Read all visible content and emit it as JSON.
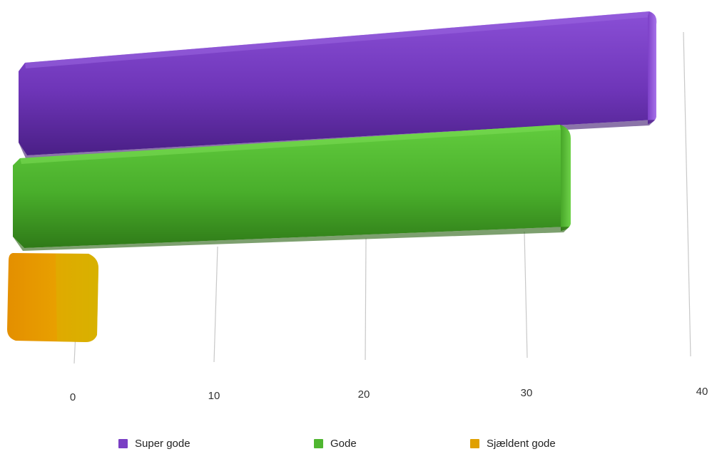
{
  "chart_data": {
    "type": "bar",
    "orientation": "horizontal",
    "style": "3d",
    "series": [
      {
        "name": "Super gode",
        "value": 38,
        "color": "#7a3fc4"
      },
      {
        "name": "Gode",
        "value": 33,
        "color": "#4fb630"
      },
      {
        "name": "Sjældent gode",
        "value": 1,
        "color": "#e0a000"
      }
    ],
    "x_ticks": [
      "0",
      "10",
      "20",
      "30",
      "40"
    ],
    "xlim": [
      0,
      40
    ],
    "grid": true,
    "legend_position": "bottom"
  }
}
